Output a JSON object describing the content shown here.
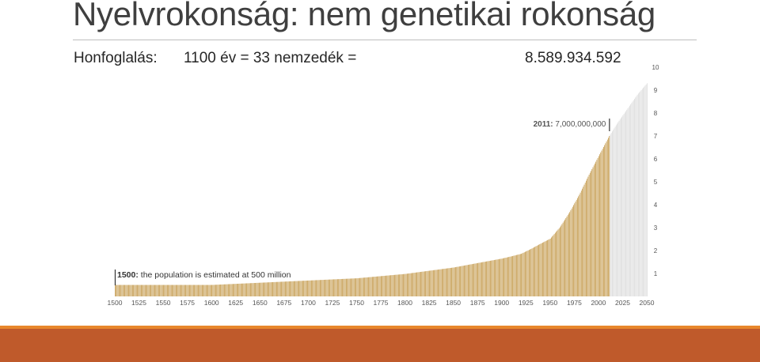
{
  "slide": {
    "title": "Nyelvrokonság: nem genetikai rokonság",
    "subtitle_label": "Honfoglalás:",
    "subtitle_formula": "1100 év = 33 nemzedék =",
    "subtitle_result": "8.589.934.592"
  },
  "colors": {
    "bar_historic": "#c49a4c",
    "bar_projection": "#dcdcdc",
    "band_thin": "#e8872c",
    "band_thick": "#bf5a2b"
  },
  "chart_data": {
    "type": "bar",
    "title": "",
    "xlabel": "",
    "ylabel": "",
    "x_ticks": [
      1500,
      1525,
      1550,
      1575,
      1600,
      1625,
      1650,
      1675,
      1700,
      1725,
      1750,
      1775,
      1800,
      1825,
      1850,
      1875,
      1900,
      1925,
      1950,
      1975,
      2000,
      2025,
      2050
    ],
    "y_ticks": [
      1,
      2,
      3,
      4,
      5,
      6,
      7,
      8,
      9,
      10
    ],
    "xlim": [
      1500,
      2050
    ],
    "ylim": [
      0,
      10
    ],
    "y_unit": "billion",
    "y_axis_position": "right",
    "series": [
      {
        "kind": "historic",
        "points": [
          [
            1500,
            0.5
          ],
          [
            1600,
            0.5
          ],
          [
            1750,
            0.79
          ],
          [
            1800,
            0.98
          ],
          [
            1850,
            1.26
          ],
          [
            1900,
            1.65
          ],
          [
            1910,
            1.75
          ],
          [
            1920,
            1.86
          ],
          [
            1930,
            2.07
          ],
          [
            1940,
            2.3
          ],
          [
            1950,
            2.52
          ],
          [
            1960,
            3.02
          ],
          [
            1970,
            3.68
          ],
          [
            1980,
            4.44
          ],
          [
            1990,
            5.31
          ],
          [
            2000,
            6.12
          ],
          [
            2011,
            7.0
          ]
        ]
      },
      {
        "kind": "projection",
        "points": [
          [
            2011,
            7.0
          ],
          [
            2020,
            7.6
          ],
          [
            2030,
            8.2
          ],
          [
            2040,
            8.8
          ],
          [
            2050,
            9.3
          ]
        ]
      }
    ],
    "annotations": [
      {
        "year": 1500,
        "bold": "1500:",
        "text": "the population is estimated at 500 million"
      },
      {
        "year": 2011,
        "bold": "2011:",
        "text": "7,000,000,000"
      }
    ]
  }
}
